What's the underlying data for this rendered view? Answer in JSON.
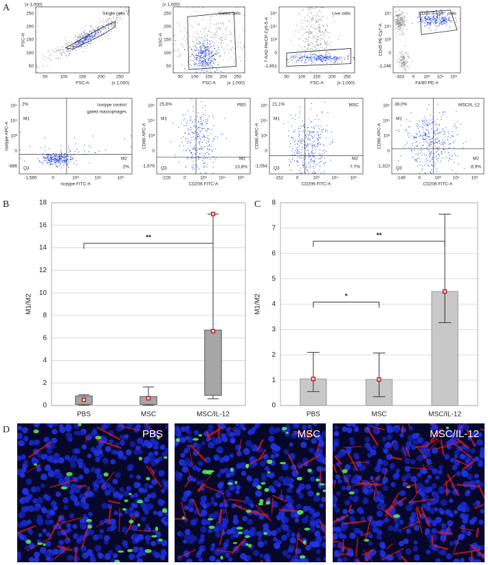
{
  "panel_labels": [
    "A",
    "B",
    "C",
    "D"
  ],
  "flow_plots": [
    {
      "gate": "Single cells",
      "y_label": "FSC-H",
      "x_label": "FSC-A",
      "x_scale": "(x 1,000)",
      "y_scale": "(x 1,000)",
      "xticks": [
        "50",
        "100",
        "150",
        "200",
        "250"
      ],
      "yticks": [
        "50",
        "100",
        "150",
        "200",
        "250"
      ]
    },
    {
      "gate": "Gated cells",
      "y_label": "SSC-A",
      "x_label": "FSC-A",
      "x_scale": "(x 1,000)",
      "y_scale": "(x 1,000)",
      "xticks": [
        "50",
        "100",
        "150",
        "200",
        "250"
      ],
      "yticks": [
        "50",
        "100",
        "150",
        "200",
        "250"
      ]
    },
    {
      "gate": "Live cells",
      "y_label": "7-AAD PerCP-Cy5-5-A",
      "x_label": "FSC-A",
      "x_scale": "(x 1,000)",
      "xticks": [
        "50",
        "100",
        "150",
        "200",
        "250"
      ],
      "yticks": [
        "-1,651",
        "0",
        "10³",
        "10⁴",
        "10⁵"
      ]
    },
    {
      "gate": "CD45⁺F4/80⁺ cells",
      "y_label": "CD45 PE-Cy7-A",
      "x_label": "F4/80 PE-A",
      "xticks": [
        "-333",
        "0",
        "10³",
        "10⁴",
        "10⁵"
      ],
      "yticks": [
        "-1,248",
        "0",
        "10³",
        "10⁴",
        "10⁵"
      ]
    },
    {
      "gate": [
        "Isotype control",
        "gated macrophages"
      ],
      "y_label": "Isotype APC-A",
      "x_label": "Isotype FITC-A",
      "upper_left": "2%",
      "lower_right": "2%",
      "quadrants": [
        "M1",
        "M2",
        "Q3"
      ],
      "xticks": [
        "-1,565",
        "0",
        "10³",
        "10⁴",
        "10⁵"
      ],
      "yticks": [
        "-886",
        "0",
        "10³",
        "10⁴",
        "10⁵"
      ]
    },
    {
      "gate": "PBS",
      "y_label": "CD86 APC-A",
      "x_label": "CD206 FITC-A",
      "upper_left": "25,6%",
      "lower_right": "13,8%",
      "quadrants": [
        "M1",
        "M2",
        "Q3"
      ],
      "xticks": [
        "-226",
        "0",
        "10³",
        "10⁴",
        "10⁵"
      ],
      "yticks": [
        "-1,679",
        "0",
        "10³",
        "10⁴",
        "10⁵"
      ]
    },
    {
      "gate": "MSC",
      "y_label": "CD86 APC-A",
      "x_label": "CD206 FITC-A",
      "upper_left": "21,1%",
      "lower_right": "7,7%",
      "quadrants": [
        "M1",
        "M2",
        "Q3"
      ],
      "xticks": [
        "-152",
        "0",
        "10³",
        "10⁴",
        "10⁵"
      ],
      "yticks": [
        "-1,054",
        "0",
        "10³",
        "10⁴",
        "10⁵"
      ]
    },
    {
      "gate": "MSC/IL-12",
      "y_label": "CD86 APC-A",
      "x_label": "CD206 FITC-A",
      "upper_left": "38,0%",
      "lower_right": "8,9%",
      "quadrants": [
        "M1",
        "M2",
        "Q3"
      ],
      "xticks": [
        "-149",
        "0",
        "10³",
        "10⁴",
        "10⁵"
      ],
      "yticks": [
        "-1,310",
        "0",
        "10³",
        "10⁴",
        "10⁵"
      ]
    }
  ],
  "chart_data": [
    {
      "type": "box",
      "ylabel": "M1/M2",
      "categories": [
        "PBS",
        "MSC",
        "MSC/IL-12"
      ],
      "min": [
        0.02,
        0.02,
        0.6
      ],
      "q1": [
        0.1,
        0.1,
        0.9
      ],
      "q3": [
        0.85,
        0.8,
        6.7
      ],
      "max": [
        0.95,
        1.65,
        17
      ],
      "points": [
        [
          0.5
        ],
        [
          0.65
        ],
        [
          6.6,
          17
        ]
      ],
      "ylim": [
        0,
        18
      ],
      "yticks": [
        0,
        2,
        4,
        6,
        8,
        10,
        12,
        14,
        16,
        18
      ],
      "grid": true,
      "color": "#a6a6a6",
      "marker_color": "#c00000",
      "annotations": [
        {
          "text": "**",
          "between": [
            0,
            2
          ]
        }
      ]
    },
    {
      "type": "bar",
      "ylabel": "M1/M2",
      "categories": [
        "PBS",
        "MSC",
        "MSC/IL-12"
      ],
      "values": [
        1.05,
        1.03,
        4.5
      ],
      "lower": [
        0.55,
        0.35,
        3.27
      ],
      "upper": [
        2.1,
        2.07,
        7.55
      ],
      "ylim": [
        0,
        8
      ],
      "yticks": [
        0,
        1,
        2,
        3,
        4,
        5,
        6,
        7,
        8
      ],
      "grid": true,
      "color": "#c8c8c8",
      "marker_color": "#c00000",
      "annotations": [
        {
          "text": "*",
          "between": [
            0,
            1
          ]
        },
        {
          "text": "**",
          "between": [
            0,
            2
          ]
        }
      ]
    }
  ],
  "images": [
    {
      "label": "PBS"
    },
    {
      "label": "MSC"
    },
    {
      "label": "MSC/IL-12"
    }
  ]
}
